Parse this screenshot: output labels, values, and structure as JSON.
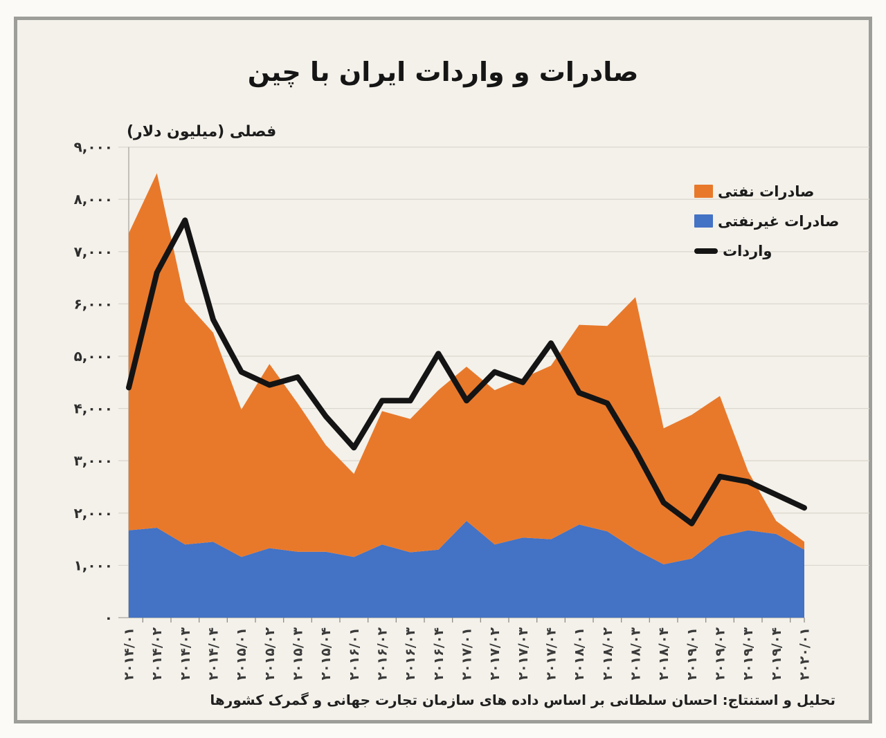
{
  "title": "صادرات و واردات ایران با چین",
  "y_axis_label": "فصلی (میلیون دلار)",
  "source_note": "تحلیل و استنتاج: احسان سلطانی بر اساس داده های سازمان تجارت جهانی و گمرک کشورها",
  "colors": {
    "oil": "#E8792B",
    "non_oil": "#4472C4",
    "imports": "#141414",
    "background": "#F4F1EA",
    "frame": "#9D9D99",
    "gridline": "#DBD8CF",
    "axis": "#B2AFA7",
    "tick_label": "#333333"
  },
  "legend": [
    {
      "label": "صادرات نفتی",
      "series": "oil",
      "marker": "square"
    },
    {
      "label": "صادرات غیرنفتی",
      "series": "non_oil",
      "marker": "square"
    },
    {
      "label": "واردات",
      "series": "imports",
      "marker": "line"
    }
  ],
  "chart_data": {
    "type": "area",
    "stacked": true,
    "title": "صادرات و واردات ایران با چین",
    "ylabel": "فصلی (میلیون دلار)",
    "xlabel": "",
    "unit": "million USD, quarterly",
    "grid": true,
    "legend_position": "top-right",
    "ylim": [
      0,
      9000
    ],
    "ytick_step": 1000,
    "yticks_fa": [
      "۰",
      "۱,۰۰۰",
      "۲,۰۰۰",
      "۳,۰۰۰",
      "۴,۰۰۰",
      "۵,۰۰۰",
      "۶,۰۰۰",
      "۷,۰۰۰",
      "۸,۰۰۰",
      "۹,۰۰۰"
    ],
    "categories": [
      "2014/01",
      "2014/02",
      "2014/03",
      "2014/04",
      "2015/01",
      "2015/02",
      "2015/03",
      "2015/04",
      "2016/01",
      "2016/02",
      "2016/03",
      "2016/04",
      "2017/01",
      "2017/02",
      "2017/03",
      "2017/04",
      "2018/01",
      "2018/02",
      "2018/03",
      "2018/04",
      "2019/01",
      "2019/02",
      "2019/03",
      "2019/04",
      "2020/01"
    ],
    "categories_fa": [
      "۲۰۱۴/۰۱",
      "۲۰۱۴/۰۲",
      "۲۰۱۴/۰۳",
      "۲۰۱۴/۰۴",
      "۲۰۱۵/۰۱",
      "۲۰۱۵/۰۲",
      "۲۰۱۵/۰۳",
      "۲۰۱۵/۰۴",
      "۲۰۱۶/۰۱",
      "۲۰۱۶/۰۲",
      "۲۰۱۶/۰۳",
      "۲۰۱۶/۰۴",
      "۲۰۱۷/۰۱",
      "۲۰۱۷/۰۲",
      "۲۰۱۷/۰۳",
      "۲۰۱۷/۰۴",
      "۲۰۱۸/۰۱",
      "۲۰۱۸/۰۲",
      "۲۰۱۸/۰۳",
      "۲۰۱۸/۰۴",
      "۲۰۱۹/۰۱",
      "۲۰۱۹/۰۲",
      "۲۰۱۹/۰۳",
      "۲۰۱۹/۰۴",
      "۲۰۲۰/۰۱"
    ],
    "series": [
      {
        "name": "صادرات غیرنفتی",
        "name_en": "non-oil exports",
        "render": "area",
        "color": "#4472C4",
        "values": [
          1670,
          1720,
          1400,
          1450,
          1160,
          1330,
          1260,
          1260,
          1160,
          1400,
          1250,
          1300,
          1850,
          1400,
          1530,
          1500,
          1780,
          1650,
          1300,
          1020,
          1130,
          1550,
          1670,
          1600,
          1300
        ]
      },
      {
        "name": "صادرات نفتی",
        "name_en": "oil exports",
        "render": "area",
        "color": "#E8792B",
        "values": [
          5680,
          6780,
          4650,
          4000,
          2820,
          3520,
          2840,
          2040,
          1590,
          2550,
          2550,
          3050,
          2950,
          2950,
          3050,
          3320,
          3820,
          3930,
          4830,
          2600,
          2750,
          2690,
          1130,
          250,
          150
        ]
      },
      {
        "name": "واردات",
        "name_en": "imports",
        "render": "line",
        "color": "#141414",
        "values": [
          4400,
          6600,
          7600,
          5700,
          4700,
          4450,
          4600,
          3850,
          3250,
          4150,
          4150,
          5050,
          4150,
          4700,
          4500,
          5250,
          4300,
          4100,
          3200,
          2200,
          1800,
          2700,
          2600,
          2350,
          2100
        ]
      }
    ]
  }
}
